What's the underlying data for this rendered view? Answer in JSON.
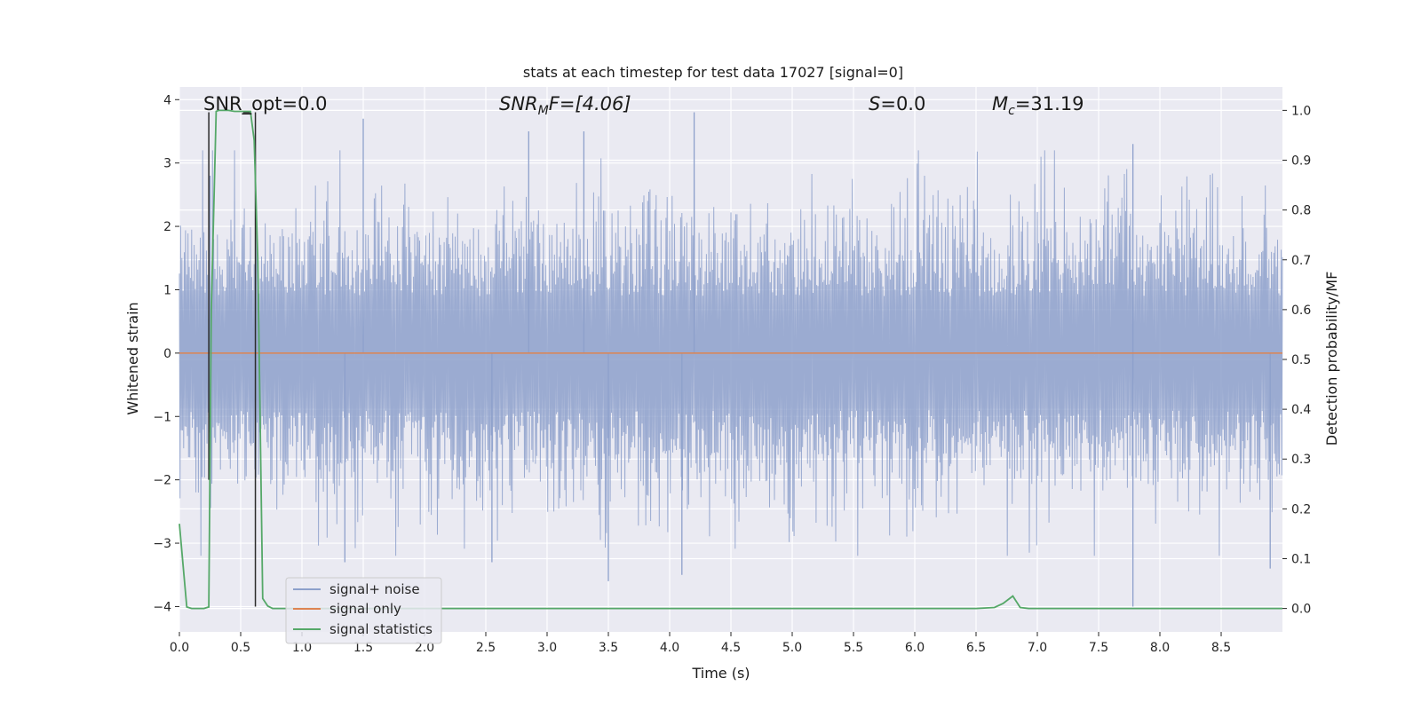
{
  "chart_data": {
    "type": "line",
    "title": "stats at each timestep for test data 17027 [signal=0]",
    "xlabel": "Time (s)",
    "ylabel": "Whitened strain",
    "y2label": "Detection probability/MF",
    "xlim": [
      0,
      9
    ],
    "ylim": [
      -4.4,
      4.2
    ],
    "y2lim": [
      -0.047,
      1.047
    ],
    "grid": true,
    "legend_position": "lower-left",
    "x_ticks": [
      "0.0",
      "0.5",
      "1.0",
      "1.5",
      "2.0",
      "2.5",
      "3.0",
      "3.5",
      "4.0",
      "4.5",
      "5.0",
      "5.5",
      "6.0",
      "6.5",
      "7.0",
      "7.5",
      "8.0",
      "8.5"
    ],
    "y_ticks": [
      "4",
      "3",
      "2",
      "1",
      "0",
      "−1",
      "−2",
      "−3",
      "−4"
    ],
    "y2_ticks": [
      "1.0",
      "0.9",
      "0.8",
      "0.7",
      "0.6",
      "0.5",
      "0.4",
      "0.3",
      "0.2",
      "0.1",
      "0.0"
    ],
    "annotations": {
      "snr_opt": "SNR_opt=0.0",
      "snr_mf_base": "SNR",
      "snr_mf_sub": "M",
      "snr_mf_rest": "F=[4.06]",
      "s_italic": "S",
      "s_rest": "=0.0",
      "mc_base": "M",
      "mc_sub": "c",
      "mc_rest": "=31.19"
    },
    "series": [
      {
        "name": "signal+ noise",
        "color": "#8da0cb",
        "kind": "noise",
        "upper_envelope_typical": [
          1.5,
          2.5
        ],
        "lower_envelope_typical": [
          -1.5,
          -2.5
        ],
        "notable_peaks": [
          {
            "x": 0.25,
            "y": 2.8
          },
          {
            "x": 1.5,
            "y": 3.7
          },
          {
            "x": 2.85,
            "y": 3.5
          },
          {
            "x": 3.3,
            "y": 3.5
          },
          {
            "x": 4.2,
            "y": 3.8
          },
          {
            "x": 7.78,
            "y": 3.3
          },
          {
            "x": 3.5,
            "y": -3.6
          },
          {
            "x": 4.1,
            "y": -3.5
          },
          {
            "x": 7.78,
            "y": -4.0
          },
          {
            "x": 8.9,
            "y": -3.4
          },
          {
            "x": 1.35,
            "y": -3.3
          },
          {
            "x": 2.55,
            "y": -3.3
          }
        ]
      },
      {
        "name": "signal only",
        "color": "#dd8452",
        "kind": "constant",
        "value": 0.0
      },
      {
        "name": "signal statistics",
        "color": "#55a868",
        "kind": "probability",
        "x": [
          0.0,
          0.06,
          0.1,
          0.15,
          0.2,
          0.24,
          0.26,
          0.3,
          0.32,
          0.4,
          0.45,
          0.55,
          0.58,
          0.61,
          0.64,
          0.68,
          0.72,
          0.76,
          6.5,
          6.65,
          6.72,
          6.8,
          6.86,
          6.93,
          9.0
        ],
        "y": [
          0.17,
          0.003,
          0.0,
          0.0,
          0.0,
          0.003,
          0.6,
          0.998,
          1.0,
          1.0,
          0.998,
          0.998,
          0.998,
          0.94,
          0.7,
          0.02,
          0.005,
          0.0,
          0.0,
          0.002,
          0.01,
          0.025,
          0.002,
          0.0,
          0.0
        ]
      }
    ],
    "vlines": [
      {
        "color": "#2b2b2b",
        "x": 0.24,
        "y_top": 3.8,
        "y_bottom": -2.0
      },
      {
        "color": "#2b2b2b",
        "x": 0.62,
        "y_top": 3.8,
        "y_bottom": -4.0
      },
      {
        "color": "#2b2b2b",
        "x": 0.52,
        "x2": 0.58,
        "y": 3.8
      }
    ],
    "background": "#eaeaf2",
    "gridcolor": "#ffffff"
  }
}
